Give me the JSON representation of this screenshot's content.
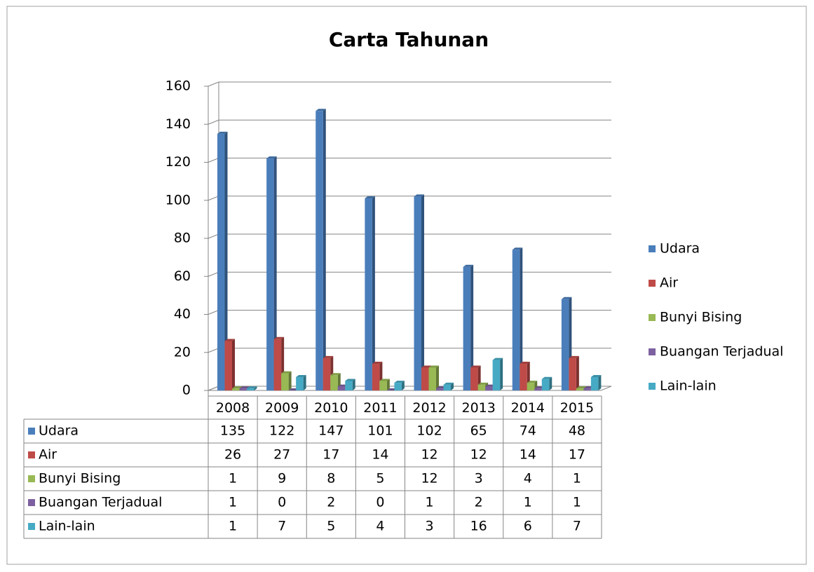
{
  "chart_data": {
    "type": "bar",
    "title": "Carta Tahunan",
    "categories": [
      "2008",
      "2009",
      "2010",
      "2011",
      "2012",
      "2013",
      "2014",
      "2015"
    ],
    "series": [
      {
        "name": "Udara",
        "color": "#4a7ebb",
        "values": [
          135,
          122,
          147,
          101,
          102,
          65,
          74,
          48
        ]
      },
      {
        "name": "Air",
        "color": "#be4b48",
        "values": [
          26,
          27,
          17,
          14,
          12,
          12,
          14,
          17
        ]
      },
      {
        "name": "Bunyi Bising",
        "color": "#98b954",
        "values": [
          1,
          9,
          8,
          5,
          12,
          3,
          4,
          1
        ]
      },
      {
        "name": "Buangan Terjadual",
        "color": "#7d60a0",
        "values": [
          1,
          0,
          2,
          0,
          1,
          2,
          1,
          1
        ]
      },
      {
        "name": "Lain-lain",
        "color": "#46aac5",
        "values": [
          1,
          7,
          5,
          4,
          3,
          16,
          6,
          7
        ]
      }
    ],
    "ylim": [
      0,
      160
    ],
    "yticks": [
      0,
      20,
      40,
      60,
      80,
      100,
      120,
      140,
      160
    ],
    "grid": true,
    "legend": "right",
    "data_table": true
  }
}
